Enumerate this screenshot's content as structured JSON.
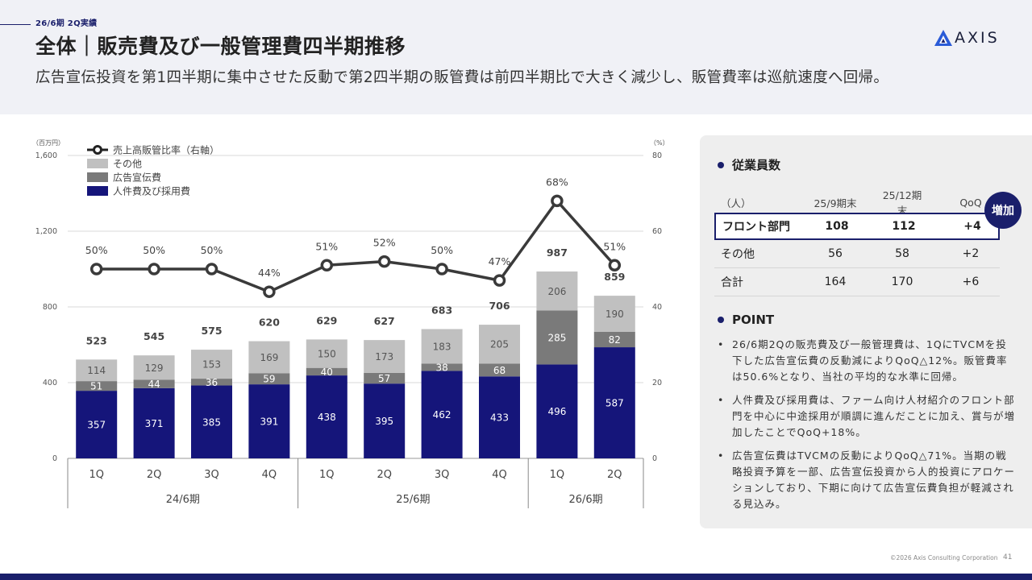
{
  "header": {
    "section_tag": "26/6期 2Q実績",
    "title": "全体｜販売費及び一般管理費四半期推移",
    "subtitle": "広告宣伝投資を第1四半期に集中させた反動で第2四半期の販管費は前四半期比で大きく減少し、販管費率は巡航速度へ回帰。",
    "logo_text": "AXIS"
  },
  "chart_data": {
    "type": "bar",
    "stacked": true,
    "y_unit_left": "（百万円）",
    "y_unit_right": "（%）",
    "ylim": [
      0,
      1600
    ],
    "y2lim": [
      0,
      80
    ],
    "yticks": [
      "0",
      "400",
      "800",
      "1,200",
      "1,600"
    ],
    "y2ticks": [
      "0",
      "20",
      "40",
      "60",
      "80"
    ],
    "categories": [
      "1Q",
      "2Q",
      "3Q",
      "4Q",
      "1Q",
      "2Q",
      "3Q",
      "4Q",
      "1Q",
      "2Q"
    ],
    "periods": [
      {
        "label": "24/6期",
        "count": 4
      },
      {
        "label": "25/6期",
        "count": 4
      },
      {
        "label": "26/6期",
        "count": 2
      }
    ],
    "series": [
      {
        "name": "人件費及び採用費",
        "color": "#15157a",
        "values": [
          357,
          371,
          385,
          391,
          438,
          395,
          462,
          433,
          496,
          587
        ]
      },
      {
        "name": "広告宣伝費",
        "color": "#7a7a7a",
        "values": [
          51,
          44,
          36,
          59,
          40,
          57,
          38,
          68,
          285,
          82
        ]
      },
      {
        "name": "その他",
        "color": "#c0c0c0",
        "values": [
          114,
          129,
          153,
          169,
          150,
          173,
          183,
          205,
          206,
          190
        ]
      }
    ],
    "totals": [
      "523",
      "545",
      "575",
      "620",
      "629",
      "627",
      "683",
      "706",
      "987",
      "859"
    ],
    "line": {
      "name": "売上高販管比率（右軸）",
      "values": [
        50,
        50,
        50,
        44,
        51,
        52,
        50,
        47,
        68,
        51
      ],
      "labels": [
        "50%",
        "50%",
        "50%",
        "44%",
        "51%",
        "52%",
        "50%",
        "47%",
        "68%",
        "51%"
      ]
    },
    "legend": [
      "売上高販管比率（右軸）",
      "その他",
      "広告宣伝費",
      "人件費及び採用費"
    ],
    "legend_position": "top-left",
    "grid": true
  },
  "panel": {
    "employees_heading": "従業員数",
    "table": {
      "headers": [
        "（人）",
        "25/9期末",
        "25/12期末",
        "QoQ"
      ],
      "rows": [
        [
          "フロント部門",
          "108",
          "112",
          "+4"
        ],
        [
          "その他",
          "56",
          "58",
          "+2"
        ],
        [
          "合計",
          "164",
          "170",
          "+6"
        ]
      ]
    },
    "badge": "増加",
    "point_heading": "POINT",
    "points": [
      "26/6期2Qの販売費及び一般管理費は、1QにTVCMを投下した広告宣伝費の反動減によりQoQ△12%。販管費率は50.6%となり、当社の平均的な水準に回帰。",
      "人件費及び採用費は、ファーム向け人材紹介のフロント部門を中心に中途採用が順調に進んだことに加え、賞与が増加したことでQoQ+18%。",
      "広告宣伝費はTVCMの反動によりQoQ△71%。当期の戦略投資予算を一部、広告宣伝投資から人的投資にアロケーションしており、下期に向けて広告宣伝費負担が軽減される見込み。"
    ]
  },
  "footer": {
    "copyright": "©2026 Axis Consulting Corporation",
    "page_number": "41"
  },
  "colors": {
    "navy": "#15157a",
    "gray": "#7a7a7a",
    "light_gray": "#c0c0c0",
    "line": "#3a3a3a"
  }
}
